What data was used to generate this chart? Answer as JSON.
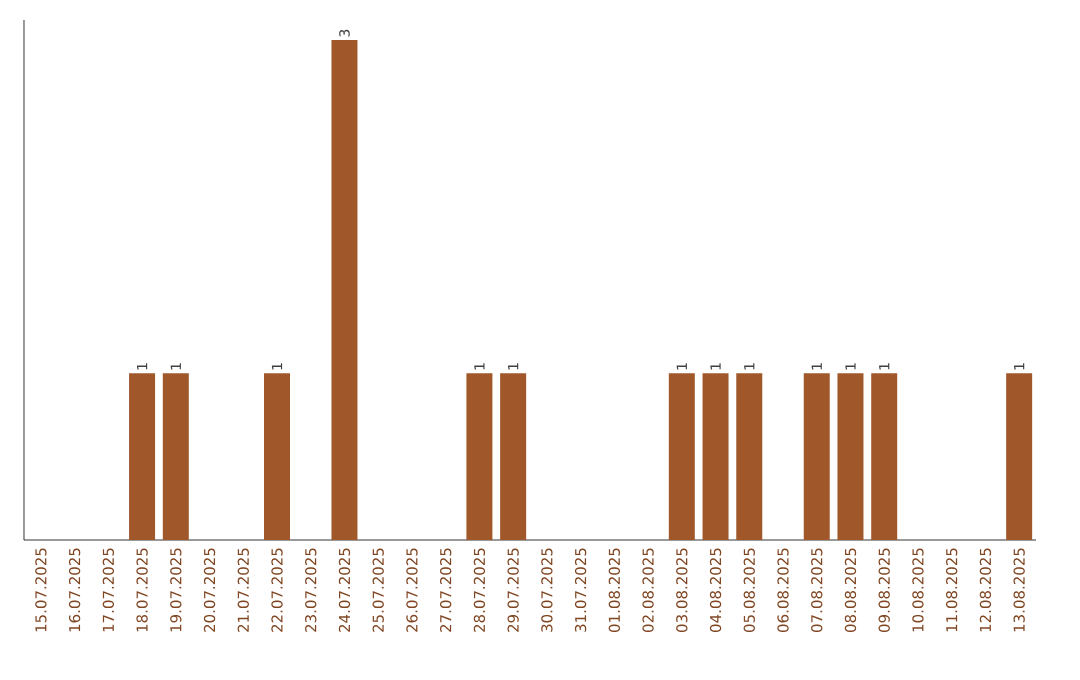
{
  "chart_data": {
    "type": "bar",
    "categories": [
      "15.07.2025",
      "16.07.2025",
      "17.07.2025",
      "18.07.2025",
      "19.07.2025",
      "20.07.2025",
      "21.07.2025",
      "22.07.2025",
      "23.07.2025",
      "24.07.2025",
      "25.07.2025",
      "26.07.2025",
      "27.07.2025",
      "28.07.2025",
      "29.07.2025",
      "30.07.2025",
      "31.07.2025",
      "01.08.2025",
      "02.08.2025",
      "03.08.2025",
      "04.08.2025",
      "05.08.2025",
      "06.08.2025",
      "07.08.2025",
      "08.08.2025",
      "09.08.2025",
      "10.08.2025",
      "11.08.2025",
      "12.08.2025",
      "13.08.2025"
    ],
    "values": [
      0,
      0,
      0,
      1,
      1,
      0,
      0,
      1,
      0,
      3,
      0,
      0,
      0,
      1,
      1,
      0,
      0,
      0,
      0,
      1,
      1,
      1,
      0,
      1,
      1,
      1,
      0,
      0,
      0,
      1
    ],
    "value_labels": [
      null,
      null,
      null,
      "1",
      "1",
      null,
      null,
      "1",
      null,
      "3",
      null,
      null,
      null,
      "1",
      "1",
      null,
      null,
      null,
      null,
      "1",
      "1",
      "1",
      null,
      "1",
      "1",
      "1",
      null,
      null,
      null,
      "1"
    ],
    "color": "#a0582a"
  }
}
